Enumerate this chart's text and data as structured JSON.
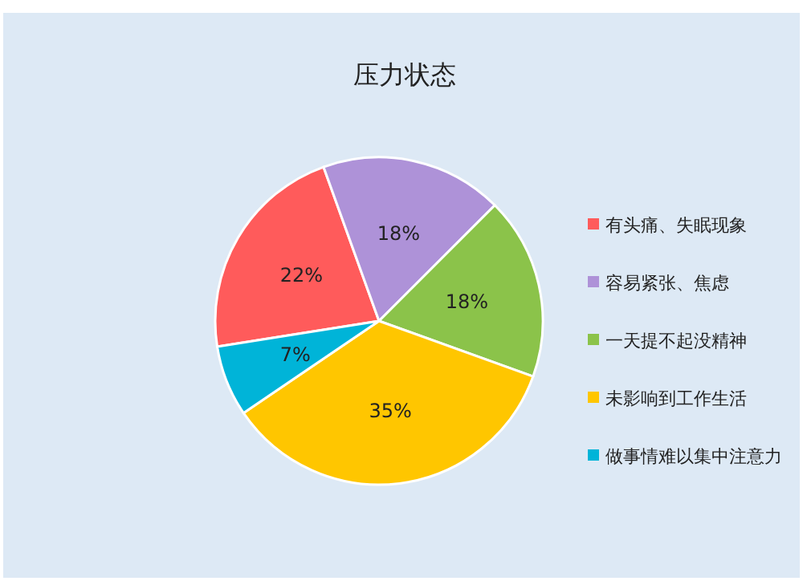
{
  "chart_data": {
    "type": "pie",
    "title": "压力状态",
    "categories": [
      "有头痛、失眠现象",
      "容易紧张、焦虑",
      "一天提不起没精神",
      "未影响到工作生活",
      "做事情难以集中注意力"
    ],
    "values": [
      22,
      18,
      18,
      35,
      7
    ],
    "colors": [
      "#ff5b5b",
      "#ae92d8",
      "#8bc34a",
      "#ffc600",
      "#00b4d8"
    ],
    "value_labels": [
      "22%",
      "18%",
      "18%",
      "35%",
      "7%"
    ],
    "legend": "right"
  }
}
